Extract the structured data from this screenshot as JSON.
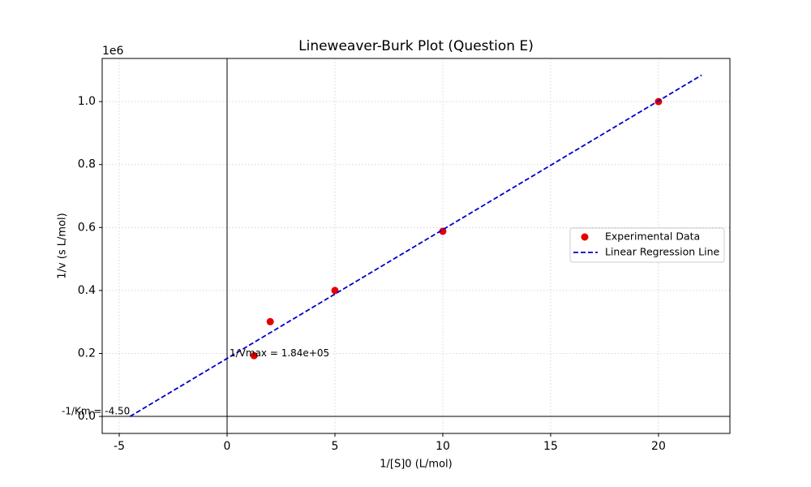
{
  "chart_data": {
    "type": "scatter",
    "title": "Lineweaver-Burk Plot (Question E)",
    "xlabel": "1/[S]0 (L/mol)",
    "ylabel": "1/v (s L/mol)",
    "y_offset_label": "1e6",
    "xlim": [
      -5.79,
      23.31
    ],
    "ylim": [
      -54000,
      1137000
    ],
    "xticks": [
      -5,
      0,
      5,
      10,
      15,
      20
    ],
    "yticks": [
      {
        "value": 0,
        "label": "0.0"
      },
      {
        "value": 200000,
        "label": "0.2"
      },
      {
        "value": 400000,
        "label": "0.4"
      },
      {
        "value": 600000,
        "label": "0.6"
      },
      {
        "value": 800000,
        "label": "0.8"
      },
      {
        "value": 1000000,
        "label": "1.0"
      }
    ],
    "grid": true,
    "legend": "center right",
    "series": [
      {
        "name": "Experimental Data",
        "kind": "points",
        "color": "#e50000",
        "x": [
          1.25,
          2,
          5,
          10,
          20
        ],
        "values": [
          193000,
          301000,
          400000,
          588000,
          1000000
        ]
      },
      {
        "name": "Linear Regression Line",
        "kind": "dashed-line",
        "color": "#0000cc",
        "x": [
          -4.5,
          22
        ],
        "values": [
          0,
          1084000
        ]
      }
    ],
    "annotations": [
      {
        "text": "1/Vmax = 1.84e+05",
        "x": 0,
        "y": 184000,
        "align": "start"
      },
      {
        "text": "-1/Km = -4.50",
        "x": -4.5,
        "y": 0,
        "align": "end"
      }
    ]
  }
}
